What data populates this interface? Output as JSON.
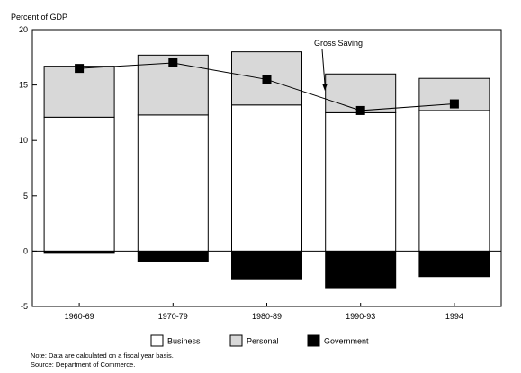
{
  "chart_data": {
    "type": "bar",
    "ylabel": "Percent of GDP",
    "ylim": [
      -5,
      20
    ],
    "yticks": [
      -5,
      0,
      5,
      10,
      15,
      20
    ],
    "categories": [
      "1960-69",
      "1970-79",
      "1980-89",
      "1990-93",
      "1994"
    ],
    "stacked": true,
    "series": [
      {
        "name": "Business",
        "color": "#ffffff",
        "values": [
          12.1,
          12.3,
          13.2,
          12.5,
          12.7
        ]
      },
      {
        "name": "Personal",
        "color": "#d8d8d8",
        "values": [
          4.6,
          5.4,
          4.8,
          3.5,
          2.9
        ]
      },
      {
        "name": "Government",
        "color": "#000000",
        "values": [
          -0.2,
          -0.9,
          -2.5,
          -3.3,
          -2.3
        ]
      }
    ],
    "line_series": {
      "name": "Gross Saving",
      "values": [
        16.5,
        17.0,
        15.5,
        12.7,
        13.3
      ]
    },
    "annotation": "Gross Saving",
    "legend_position": "bottom",
    "grid": false
  },
  "notes": {
    "note": "Note: Data are calculated on a fiscal year basis.",
    "source": "Source: Department of Commerce."
  }
}
